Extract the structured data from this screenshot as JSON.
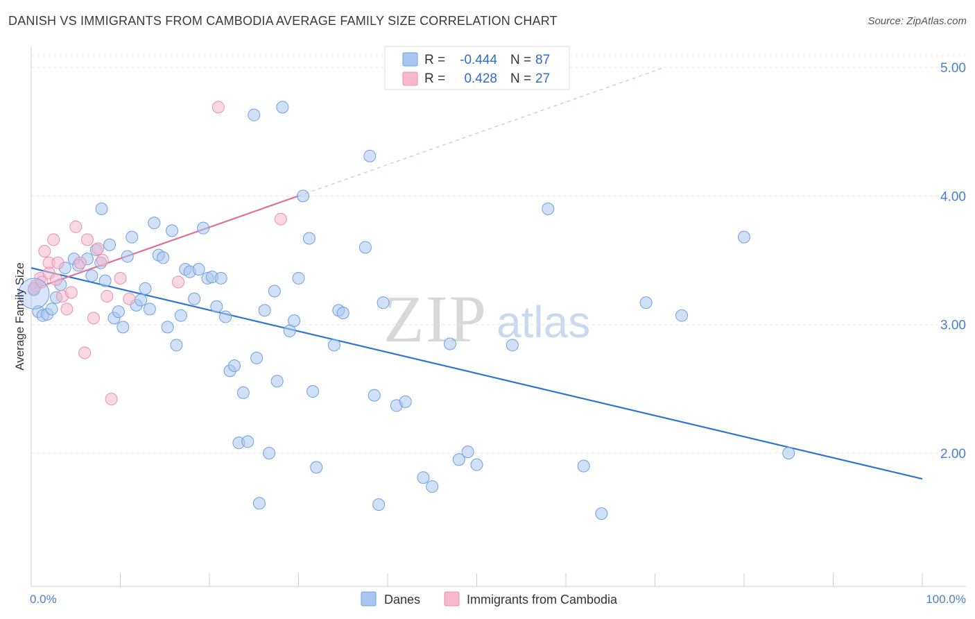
{
  "header": {
    "title": "DANISH VS IMMIGRANTS FROM CAMBODIA AVERAGE FAMILY SIZE CORRELATION CHART",
    "source": "Source: ZipAtlas.com"
  },
  "watermark": {
    "zip": "ZIP",
    "atlas": "atlas"
  },
  "legend_box": {
    "rows": [
      {
        "r_label": "R =",
        "r_value": "-0.444",
        "n_label": "N =",
        "n_value": "87",
        "color": "#a9c6f0"
      },
      {
        "r_label": "R =",
        "r_value": "0.428",
        "n_label": "N =",
        "n_value": "27",
        "color": "#f5b8cc"
      }
    ]
  },
  "bottom_legend": {
    "items": [
      {
        "label": "Danes",
        "color": "#a9c6f0"
      },
      {
        "label": "Immigrants from Cambodia",
        "color": "#f5b8cc"
      }
    ]
  },
  "chart_data": {
    "type": "scatter",
    "title": "DANISH VS IMMIGRANTS FROM CAMBODIA AVERAGE FAMILY SIZE CORRELATION CHART",
    "xlabel": "",
    "ylabel": "Average Family Size",
    "xlim": [
      0,
      100
    ],
    "ylim": [
      1.0,
      5.1
    ],
    "x_tick_labels": [
      "0.0%",
      "100.0%"
    ],
    "y_ticks": [
      2.0,
      3.0,
      4.0,
      5.0
    ],
    "y_tick_labels": [
      "2.00",
      "3.00",
      "4.00",
      "5.00"
    ],
    "grid": true,
    "legend_position": "top-center",
    "series": [
      {
        "name": "Danes",
        "color": "#6fa0e0",
        "fill": "#a9c6f0",
        "trend": {
          "x0": 0,
          "y0": 3.44,
          "x1": 100,
          "y1": 1.8,
          "color": "#2f74d0"
        },
        "points": [
          [
            0.3,
            3.27
          ],
          [
            0.8,
            3.1
          ],
          [
            1.3,
            3.07
          ],
          [
            1.8,
            3.08
          ],
          [
            2.3,
            3.12
          ],
          [
            2.8,
            3.21
          ],
          [
            3.3,
            3.31
          ],
          [
            3.8,
            3.44
          ],
          [
            4.8,
            3.51
          ],
          [
            5.3,
            3.46
          ],
          [
            6.3,
            3.51
          ],
          [
            6.8,
            3.38
          ],
          [
            7.3,
            3.58
          ],
          [
            7.8,
            3.48
          ],
          [
            7.9,
            3.9
          ],
          [
            8.3,
            3.34
          ],
          [
            8.8,
            3.62
          ],
          [
            9.3,
            3.05
          ],
          [
            9.8,
            3.1
          ],
          [
            10.3,
            2.98
          ],
          [
            10.8,
            3.53
          ],
          [
            11.3,
            3.68
          ],
          [
            11.8,
            3.15
          ],
          [
            12.3,
            3.19
          ],
          [
            12.8,
            3.28
          ],
          [
            13.3,
            3.12
          ],
          [
            13.8,
            3.79
          ],
          [
            14.3,
            3.54
          ],
          [
            14.8,
            3.52
          ],
          [
            15.3,
            2.98
          ],
          [
            15.8,
            3.73
          ],
          [
            16.3,
            2.84
          ],
          [
            16.8,
            3.07
          ],
          [
            17.3,
            3.43
          ],
          [
            17.8,
            3.41
          ],
          [
            18.3,
            3.2
          ],
          [
            18.8,
            3.43
          ],
          [
            19.3,
            3.75
          ],
          [
            19.8,
            3.36
          ],
          [
            20.3,
            3.37
          ],
          [
            20.8,
            3.14
          ],
          [
            21.3,
            3.36
          ],
          [
            21.8,
            3.06
          ],
          [
            22.3,
            2.64
          ],
          [
            22.8,
            2.68
          ],
          [
            23.3,
            2.08
          ],
          [
            23.8,
            2.47
          ],
          [
            24.3,
            2.09
          ],
          [
            25.0,
            4.63
          ],
          [
            25.3,
            2.74
          ],
          [
            25.6,
            1.61
          ],
          [
            26.2,
            3.11
          ],
          [
            26.7,
            2.0
          ],
          [
            27.3,
            3.26
          ],
          [
            27.6,
            2.56
          ],
          [
            28.2,
            4.69
          ],
          [
            29.0,
            2.95
          ],
          [
            29.5,
            3.03
          ],
          [
            30.0,
            3.36
          ],
          [
            30.5,
            4.0
          ],
          [
            31.2,
            3.67
          ],
          [
            31.6,
            2.48
          ],
          [
            32.0,
            1.89
          ],
          [
            34.0,
            2.84
          ],
          [
            34.5,
            3.11
          ],
          [
            35.0,
            3.09
          ],
          [
            37.5,
            3.6
          ],
          [
            38.0,
            4.31
          ],
          [
            38.5,
            2.45
          ],
          [
            39.0,
            1.6
          ],
          [
            39.5,
            3.17
          ],
          [
            41.0,
            2.37
          ],
          [
            42.0,
            2.4
          ],
          [
            44.0,
            1.81
          ],
          [
            45.0,
            1.74
          ],
          [
            47.0,
            2.85
          ],
          [
            48.0,
            1.95
          ],
          [
            49.0,
            2.01
          ],
          [
            50.0,
            1.91
          ],
          [
            54.0,
            2.84
          ],
          [
            58.0,
            3.9
          ],
          [
            62.0,
            1.9
          ],
          [
            64.0,
            1.53
          ],
          [
            69.0,
            3.17
          ],
          [
            73.0,
            3.07
          ],
          [
            80.0,
            3.68
          ],
          [
            85.0,
            2.0
          ]
        ]
      },
      {
        "name": "Immigrants from Cambodia",
        "color": "#e890ad",
        "fill": "#f5b8cc",
        "trend": {
          "x0": 0,
          "y0": 3.27,
          "x1": 30,
          "y1": 4.0,
          "dash_to_x": 71,
          "color": "#e06f98"
        },
        "points": [
          [
            0.5,
            3.3
          ],
          [
            1.0,
            3.36
          ],
          [
            1.5,
            3.57
          ],
          [
            2.0,
            3.48
          ],
          [
            2.0,
            3.4
          ],
          [
            2.5,
            3.66
          ],
          [
            2.8,
            3.35
          ],
          [
            3.0,
            3.48
          ],
          [
            3.5,
            3.22
          ],
          [
            4.0,
            3.12
          ],
          [
            4.5,
            3.25
          ],
          [
            5.0,
            3.76
          ],
          [
            5.5,
            3.48
          ],
          [
            6.0,
            2.78
          ],
          [
            6.3,
            3.66
          ],
          [
            7.0,
            3.05
          ],
          [
            7.5,
            3.59
          ],
          [
            8.0,
            3.5
          ],
          [
            8.5,
            3.22
          ],
          [
            9.0,
            2.42
          ],
          [
            10.0,
            3.36
          ],
          [
            11.0,
            3.2
          ],
          [
            16.5,
            3.33
          ],
          [
            21.0,
            4.69
          ],
          [
            28.0,
            3.82
          ],
          [
            0.3,
            3.28
          ],
          [
            1.2,
            3.33
          ]
        ]
      }
    ]
  }
}
